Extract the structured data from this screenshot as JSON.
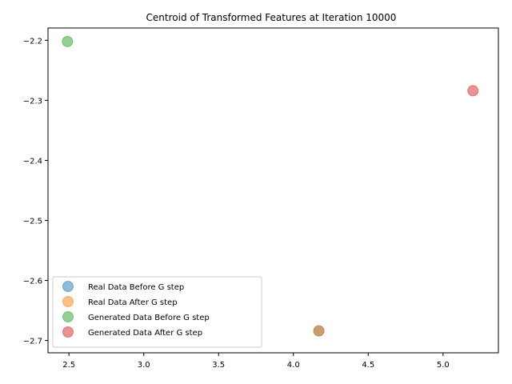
{
  "chart_data": {
    "type": "scatter",
    "title": "Centroid of Transformed Features at Iteration 10000",
    "xlabel": "",
    "ylabel": "",
    "xlim": [
      2.36,
      5.37
    ],
    "ylim": [
      -2.7205,
      -2.1795
    ],
    "x_ticks": [
      2.5,
      3.0,
      3.5,
      4.0,
      4.5,
      5.0
    ],
    "x_tick_labels": [
      "2.5",
      "3.0",
      "3.5",
      "4.0",
      "4.5",
      "5.0"
    ],
    "y_ticks": [
      -2.2,
      -2.3,
      -2.4,
      -2.5,
      -2.6,
      -2.7
    ],
    "y_tick_labels": [
      "−2.2",
      "−2.3",
      "−2.4",
      "−2.5",
      "−2.6",
      "−2.7"
    ],
    "grid": false,
    "legend_position": "lower-left",
    "series": [
      {
        "name": "Real Data Before G step",
        "color": "#1f77b4",
        "x": [
          4.17
        ],
        "y": [
          -2.684
        ]
      },
      {
        "name": "Real Data After G step",
        "color": "#ff7f0e",
        "x": [
          4.17
        ],
        "y": [
          -2.684
        ]
      },
      {
        "name": "Generated Data Before G step",
        "color": "#2ca02c",
        "x": [
          2.49
        ],
        "y": [
          -2.202
        ]
      },
      {
        "name": "Generated Data After G step",
        "color": "#d62728",
        "x": [
          5.2
        ],
        "y": [
          -2.284
        ]
      }
    ]
  }
}
